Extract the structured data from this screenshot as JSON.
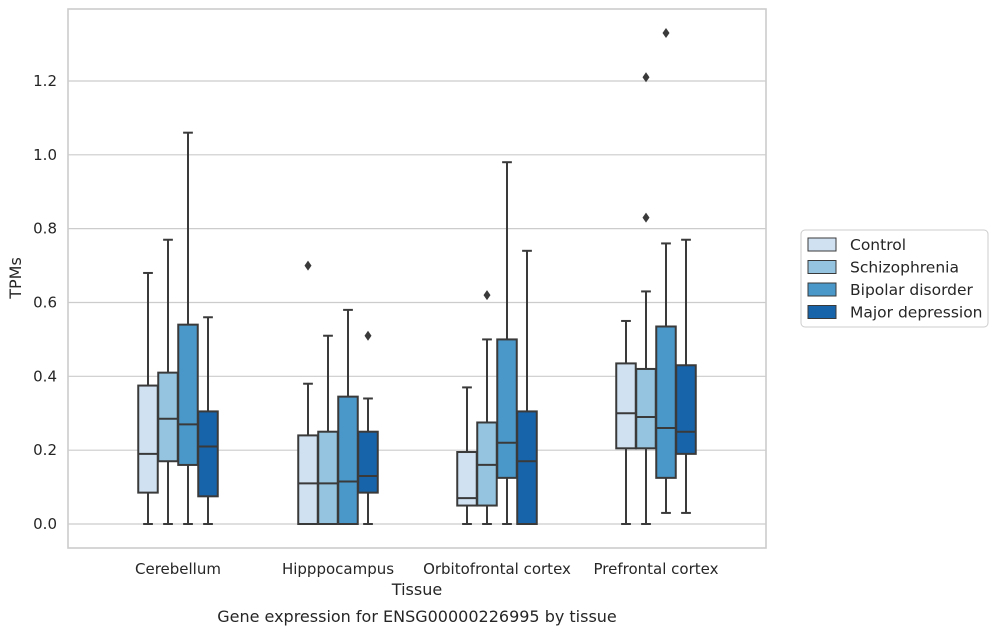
{
  "chart_data": {
    "type": "boxplot",
    "title": "Gene expression for ENSG00000226995 by tissue",
    "xlabel": "Tissue",
    "ylabel": "TPMs",
    "ylim": [
      -0.065,
      1.395
    ],
    "yticks": [
      0.0,
      0.2,
      0.4,
      0.6,
      0.8,
      1.0,
      1.2
    ],
    "ytick_labels": [
      "0.0",
      "0.2",
      "0.4",
      "0.6",
      "0.8",
      "1.0",
      "1.2"
    ],
    "grid": true,
    "legend_position": "right-outside",
    "categories": [
      "Cerebellum",
      "Hipppocampus",
      "Orbitofrontal cortex",
      "Prefrontal cortex"
    ],
    "series": [
      {
        "name": "Control",
        "color": "#d0e1f2",
        "boxes": [
          {
            "whislo": 0.0,
            "q1": 0.085,
            "med": 0.19,
            "q3": 0.375,
            "whishi": 0.68,
            "fliers": []
          },
          {
            "whislo": 0.0,
            "q1": 0.0,
            "med": 0.11,
            "q3": 0.24,
            "whishi": 0.38,
            "fliers": [
              0.7
            ]
          },
          {
            "whislo": 0.0,
            "q1": 0.05,
            "med": 0.07,
            "q3": 0.195,
            "whishi": 0.37,
            "fliers": []
          },
          {
            "whislo": 0.0,
            "q1": 0.205,
            "med": 0.3,
            "q3": 0.435,
            "whishi": 0.55,
            "fliers": []
          }
        ]
      },
      {
        "name": "Schizophrenia",
        "color": "#94c4df",
        "boxes": [
          {
            "whislo": 0.0,
            "q1": 0.17,
            "med": 0.285,
            "q3": 0.41,
            "whishi": 0.77,
            "fliers": []
          },
          {
            "whislo": 0.0,
            "q1": 0.0,
            "med": 0.11,
            "q3": 0.25,
            "whishi": 0.51,
            "fliers": []
          },
          {
            "whislo": 0.0,
            "q1": 0.05,
            "med": 0.16,
            "q3": 0.275,
            "whishi": 0.5,
            "fliers": [
              0.62
            ]
          },
          {
            "whislo": 0.0,
            "q1": 0.205,
            "med": 0.29,
            "q3": 0.42,
            "whishi": 0.63,
            "fliers": [
              0.83,
              1.21
            ]
          }
        ]
      },
      {
        "name": "Bipolar disorder",
        "color": "#4a98c9",
        "boxes": [
          {
            "whislo": 0.0,
            "q1": 0.16,
            "med": 0.27,
            "q3": 0.54,
            "whishi": 1.06,
            "fliers": []
          },
          {
            "whislo": 0.0,
            "q1": 0.0,
            "med": 0.115,
            "q3": 0.345,
            "whishi": 0.58,
            "fliers": []
          },
          {
            "whislo": 0.0,
            "q1": 0.125,
            "med": 0.22,
            "q3": 0.5,
            "whishi": 0.98,
            "fliers": []
          },
          {
            "whislo": 0.03,
            "q1": 0.125,
            "med": 0.26,
            "q3": 0.535,
            "whishi": 0.76,
            "fliers": [
              1.33
            ]
          }
        ]
      },
      {
        "name": "Major depression",
        "color": "#1764ab",
        "boxes": [
          {
            "whislo": 0.0,
            "q1": 0.075,
            "med": 0.21,
            "q3": 0.305,
            "whishi": 0.56,
            "fliers": []
          },
          {
            "whislo": 0.0,
            "q1": 0.085,
            "med": 0.13,
            "q3": 0.25,
            "whishi": 0.34,
            "fliers": [
              0.51
            ]
          },
          {
            "whislo": 0.0,
            "q1": 0.0,
            "med": 0.17,
            "q3": 0.305,
            "whishi": 0.74,
            "fliers": []
          },
          {
            "whislo": 0.03,
            "q1": 0.19,
            "med": 0.25,
            "q3": 0.43,
            "whishi": 0.77,
            "fliers": []
          }
        ]
      }
    ]
  }
}
